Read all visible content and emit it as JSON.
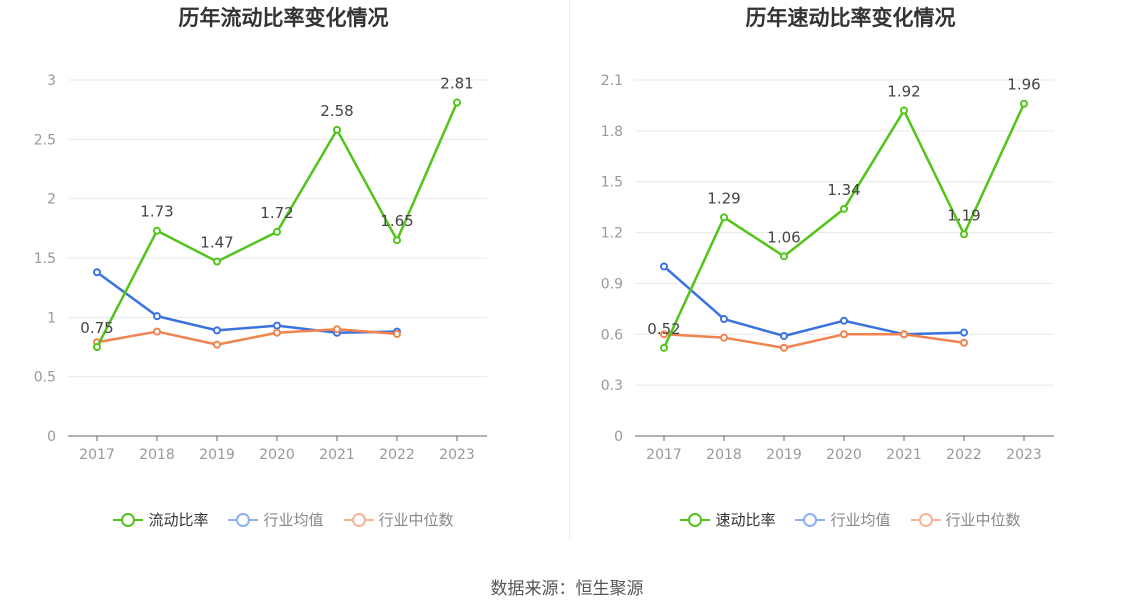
{
  "chart_data": [
    {
      "type": "line",
      "title": "历年流动比率变化情况",
      "categories": [
        "2017",
        "2018",
        "2019",
        "2020",
        "2021",
        "2022",
        "2023"
      ],
      "ylim": [
        0,
        3
      ],
      "yticks": [
        "0",
        "0.5",
        "1",
        "1.5",
        "2",
        "2.5",
        "3"
      ],
      "grid": true,
      "legend_position": "bottom",
      "series": [
        {
          "name": "流动比率",
          "color": "#52c41a",
          "labeled": true,
          "values": [
            0.75,
            1.73,
            1.47,
            1.72,
            2.58,
            1.65,
            2.81
          ],
          "labels": [
            "0.75",
            "1.73",
            "1.47",
            "1.72",
            "2.58",
            "1.65",
            "2.81"
          ]
        },
        {
          "name": "行业均值",
          "color": "#3a72e0",
          "labeled": false,
          "values": [
            1.38,
            1.01,
            0.89,
            0.93,
            0.87,
            0.88,
            null
          ]
        },
        {
          "name": "行业中位数",
          "color": "#f0834e",
          "labeled": false,
          "values": [
            0.79,
            0.88,
            0.77,
            0.87,
            0.9,
            0.86,
            null
          ]
        }
      ]
    },
    {
      "type": "line",
      "title": "历年速动比率变化情况",
      "categories": [
        "2017",
        "2018",
        "2019",
        "2020",
        "2021",
        "2022",
        "2023"
      ],
      "ylim": [
        0,
        2.1
      ],
      "yticks": [
        "0",
        "0.3",
        "0.6",
        "0.9",
        "1.2",
        "1.5",
        "1.8",
        "2.1"
      ],
      "grid": true,
      "legend_position": "bottom",
      "series": [
        {
          "name": "速动比率",
          "color": "#52c41a",
          "labeled": true,
          "values": [
            0.52,
            1.29,
            1.06,
            1.34,
            1.92,
            1.19,
            1.96
          ],
          "labels": [
            "0.52",
            "1.29",
            "1.06",
            "1.34",
            "1.92",
            "1.19",
            "1.96"
          ]
        },
        {
          "name": "行业均值",
          "color": "#3a72e0",
          "labeled": false,
          "values": [
            1.0,
            0.69,
            0.59,
            0.68,
            0.6,
            0.61,
            null
          ]
        },
        {
          "name": "行业中位数",
          "color": "#f0834e",
          "labeled": false,
          "values": [
            0.6,
            0.58,
            0.52,
            0.6,
            0.6,
            0.55,
            null
          ]
        }
      ]
    }
  ],
  "footer": {
    "source": "数据来源：恒生聚源"
  }
}
